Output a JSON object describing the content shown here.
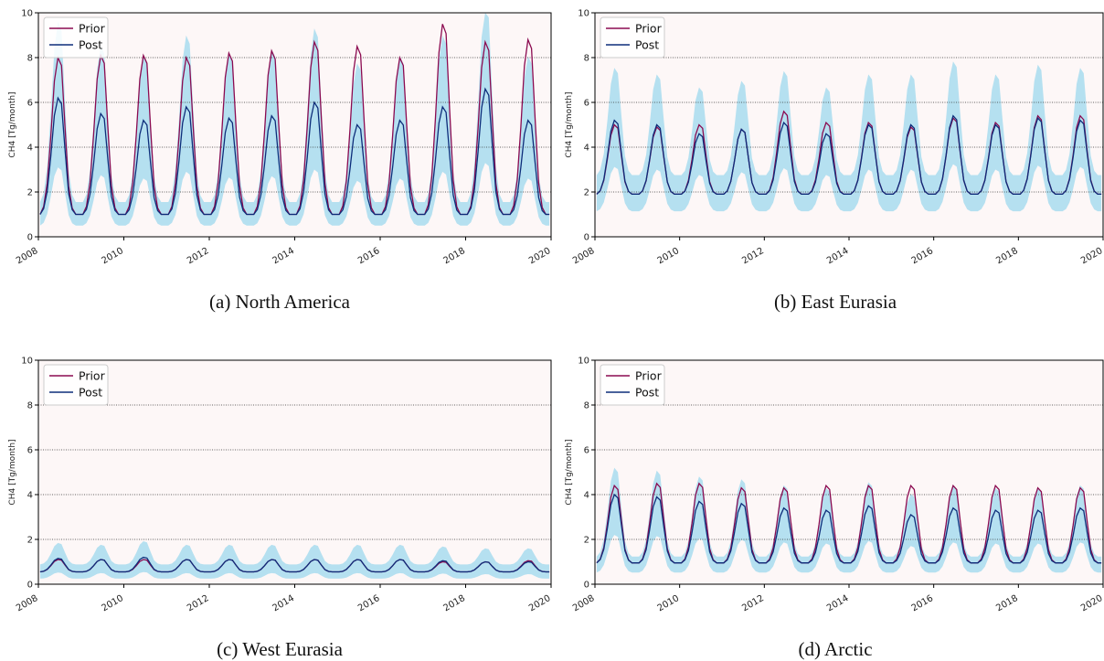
{
  "chart_data": [
    {
      "type": "area",
      "caption": "(a) North America",
      "ylabel": "CH4 [Tg/month]",
      "xlim": [
        2008,
        2020
      ],
      "ylim": [
        0,
        10
      ],
      "xticks": [
        "2008",
        "2010",
        "2012",
        "2014",
        "2016",
        "2018",
        "2020"
      ],
      "yticks": [
        "0",
        "2",
        "4",
        "6",
        "8",
        "10"
      ],
      "grid": "horizontal dotted",
      "legend": "top-left",
      "legend_entries": [
        "Prior",
        "Post"
      ],
      "series": [
        {
          "name": "Prior",
          "color": "#8b0a50",
          "base": 1.0,
          "peaks": [
            8.0,
            8.1,
            8.1,
            8.0,
            8.2,
            8.3,
            8.7,
            8.5,
            8.0,
            9.5,
            8.7,
            8.8
          ]
        },
        {
          "name": "Post",
          "color": "#0d2d7a",
          "base": 1.0,
          "peaks": [
            6.2,
            5.5,
            5.2,
            5.8,
            5.3,
            5.4,
            6.0,
            5.0,
            5.2,
            5.8,
            6.6,
            5.2
          ]
        }
      ],
      "uncertainty": {
        "color": "#a8dcee",
        "lower_factor": 0.5,
        "upper_factor": 1.55
      }
    },
    {
      "type": "area",
      "caption": "(b) East Eurasia",
      "ylabel": "CH4 [Tg/month]",
      "xlim": [
        2008,
        2020
      ],
      "ylim": [
        0,
        10
      ],
      "xticks": [
        "2008",
        "2010",
        "2012",
        "2014",
        "2016",
        "2018",
        "2020"
      ],
      "yticks": [
        "0",
        "2",
        "4",
        "6",
        "8",
        "10"
      ],
      "grid": "horizontal dotted",
      "legend": "top-left",
      "legend_entries": [
        "Prior",
        "Post"
      ],
      "series": [
        {
          "name": "Prior",
          "color": "#8b0a50",
          "base": 1.9,
          "peaks": [
            5.0,
            4.9,
            5.0,
            4.8,
            5.6,
            5.1,
            5.1,
            4.9,
            5.3,
            5.1,
            5.4,
            5.4
          ]
        },
        {
          "name": "Post",
          "color": "#0d2d7a",
          "base": 1.9,
          "peaks": [
            5.2,
            5.0,
            4.6,
            4.8,
            5.1,
            4.6,
            5.0,
            5.0,
            5.4,
            5.0,
            5.3,
            5.2
          ]
        }
      ],
      "uncertainty": {
        "color": "#a8dcee",
        "lower_factor": 0.6,
        "upper_factor": 1.45
      }
    },
    {
      "type": "area",
      "caption": "(c) West Eurasia",
      "ylabel": "CH4 [Tg/month]",
      "xlim": [
        2008,
        2020
      ],
      "ylim": [
        0,
        10
      ],
      "xticks": [
        "2008",
        "2010",
        "2012",
        "2014",
        "2016",
        "2018",
        "2020"
      ],
      "yticks": [
        "0",
        "2",
        "4",
        "6",
        "8",
        "10"
      ],
      "grid": "horizontal dotted",
      "legend": "top-left",
      "legend_entries": [
        "Prior",
        "Post"
      ],
      "series": [
        {
          "name": "Prior",
          "color": "#8b0a50",
          "base": 0.55,
          "peaks": [
            1.1,
            1.1,
            1.1,
            1.1,
            1.1,
            1.1,
            1.1,
            1.1,
            1.1,
            1.0,
            1.0,
            1.05
          ]
        },
        {
          "name": "Post",
          "color": "#0d2d7a",
          "base": 0.55,
          "peaks": [
            1.15,
            1.1,
            1.2,
            1.1,
            1.1,
            1.1,
            1.1,
            1.1,
            1.1,
            1.05,
            1.0,
            1.0
          ]
        }
      ],
      "uncertainty": {
        "color": "#a8dcee",
        "lower_factor": 0.45,
        "upper_factor": 1.6
      }
    },
    {
      "type": "area",
      "caption": "(d) Arctic",
      "ylabel": "CH4 [Tg/month]",
      "xlim": [
        2008,
        2020
      ],
      "ylim": [
        0,
        10
      ],
      "xticks": [
        "2008",
        "2010",
        "2012",
        "2014",
        "2016",
        "2018",
        "2020"
      ],
      "yticks": [
        "0",
        "2",
        "4",
        "6",
        "8",
        "10"
      ],
      "grid": "horizontal dotted",
      "legend": "top-left",
      "legend_entries": [
        "Prior",
        "Post"
      ],
      "series": [
        {
          "name": "Prior",
          "color": "#8b0a50",
          "base": 0.95,
          "peaks": [
            4.4,
            4.5,
            4.5,
            4.3,
            4.3,
            4.4,
            4.4,
            4.4,
            4.4,
            4.4,
            4.3,
            4.3
          ]
        },
        {
          "name": "Post",
          "color": "#0d2d7a",
          "base": 0.95,
          "peaks": [
            4.0,
            3.9,
            3.7,
            3.6,
            3.4,
            3.3,
            3.5,
            3.1,
            3.4,
            3.3,
            3.3,
            3.4
          ]
        }
      ],
      "uncertainty": {
        "color": "#a8dcee",
        "lower_factor": 0.55,
        "upper_factor": 1.3
      }
    }
  ],
  "style": {
    "axes_background": "#fdf7f7",
    "band_color": "#a8dcee",
    "grid_color": "#333333"
  }
}
